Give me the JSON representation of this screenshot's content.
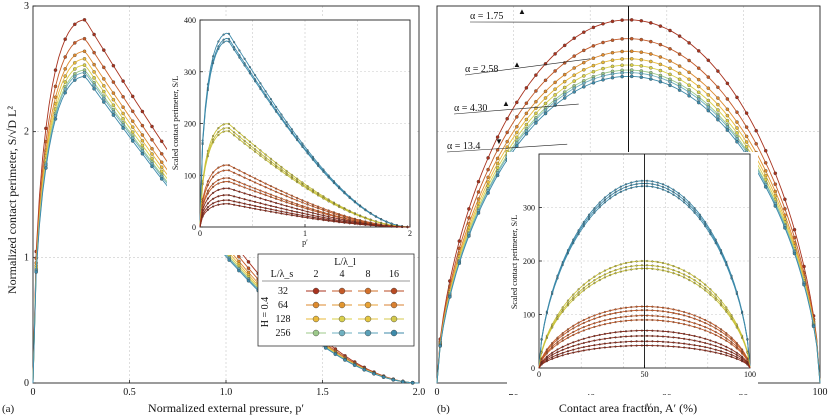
{
  "chart_data": [
    {
      "panel": "(a)",
      "type": "line",
      "xlabel": "Normalized external pressure, p′",
      "ylabel": "Normalized contact perimeter, S/√D L²",
      "xlim": [
        0,
        2
      ],
      "ylim": [
        0,
        3
      ],
      "xticks": [
        "0",
        "0.5",
        "1.0",
        "1.5",
        "2.0"
      ],
      "yticks": [
        "0",
        "1",
        "2",
        "3"
      ],
      "grid": true,
      "peak_x": 0.27,
      "peaks": [
        2.89,
        2.74,
        2.64,
        2.58,
        2.53,
        2.49,
        2.47,
        2.44
      ],
      "series_colors": [
        "#a8321e",
        "#c45a28",
        "#dd8a2e",
        "#e9b93a",
        "#d9d04a",
        "#9cc98a",
        "#6fb0c0",
        "#3d8aaa"
      ],
      "legend": {
        "title": "L/λ_l",
        "col_values": [
          "2",
          "4",
          "8",
          "16"
        ],
        "row_header": "L/λ_s",
        "row_values": [
          "32",
          "64",
          "128",
          "256"
        ],
        "h_label": "H = 0.4"
      },
      "inset": {
        "type": "line",
        "xlabel": "p′",
        "ylabel": "Scaled contact perimeter, S/L",
        "xlim": [
          0,
          2
        ],
        "ylim": [
          0,
          400
        ],
        "xticks": [
          "0",
          "1",
          "2"
        ],
        "yticks": [
          "0",
          "100",
          "200",
          "300",
          "400"
        ],
        "peak_x": 0.27,
        "peaks": [
          375,
          365,
          360,
          200,
          192,
          186,
          120,
          110,
          95,
          88,
          75,
          62,
          52,
          45
        ],
        "series_colors": [
          "#3d8aaa",
          "#3d8aaa",
          "#3d8aaa",
          "#c9c23a",
          "#c9c23a",
          "#c9c23a",
          "#c45a28",
          "#c45a28",
          "#c45a28",
          "#c45a28",
          "#8a2a1a",
          "#8a2a1a",
          "#8a2a1a",
          "#8a2a1a"
        ]
      }
    },
    {
      "panel": "(b)",
      "type": "line",
      "xlabel": "Contact area fraction, A′ (%)",
      "xlim": [
        0,
        100
      ],
      "ylim": [
        0,
        3
      ],
      "xticks": [
        "0",
        "20",
        "40",
        "60",
        "80",
        "100"
      ],
      "grid": true,
      "peak_x": 50,
      "peaks": [
        2.89,
        2.74,
        2.64,
        2.58,
        2.53,
        2.49,
        2.47,
        2.44
      ],
      "series_colors": [
        "#a8321e",
        "#c45a28",
        "#dd8a2e",
        "#e9b93a",
        "#d9d04a",
        "#9cc98a",
        "#6fb0c0",
        "#3d8aaa"
      ],
      "vertical_line_x": 50,
      "annotations": [
        {
          "text": "α = 1.75",
          "sup": "▲",
          "x": 43,
          "y": 2.87
        },
        {
          "text": "α = 2.58",
          "sup": "▲",
          "x": 40,
          "y": 2.58
        },
        {
          "text": "α = 4.30",
          "sup": "▲",
          "x": 37,
          "y": 2.22
        },
        {
          "text": "α = 13.4",
          "sup": "▼",
          "x": 34,
          "y": 1.9
        }
      ],
      "inset": {
        "type": "line",
        "xlabel": "A′",
        "ylabel": "Scaled contact perimeter, S/L",
        "xlim": [
          0,
          100
        ],
        "ylim": [
          0,
          400
        ],
        "xticks": [
          "0",
          "50",
          "100"
        ],
        "yticks": [
          "0",
          "100",
          "200",
          "300"
        ],
        "peak_x": 50,
        "peaks": [
          350,
          345,
          340,
          200,
          192,
          186,
          115,
          108,
          98,
          90,
          70,
          60,
          50,
          42
        ],
        "series_colors": [
          "#3d8aaa",
          "#3d8aaa",
          "#3d8aaa",
          "#c9c23a",
          "#c9c23a",
          "#c9c23a",
          "#c45a28",
          "#c45a28",
          "#c45a28",
          "#c45a28",
          "#8a2a1a",
          "#8a2a1a",
          "#8a2a1a",
          "#8a2a1a"
        ]
      }
    }
  ]
}
